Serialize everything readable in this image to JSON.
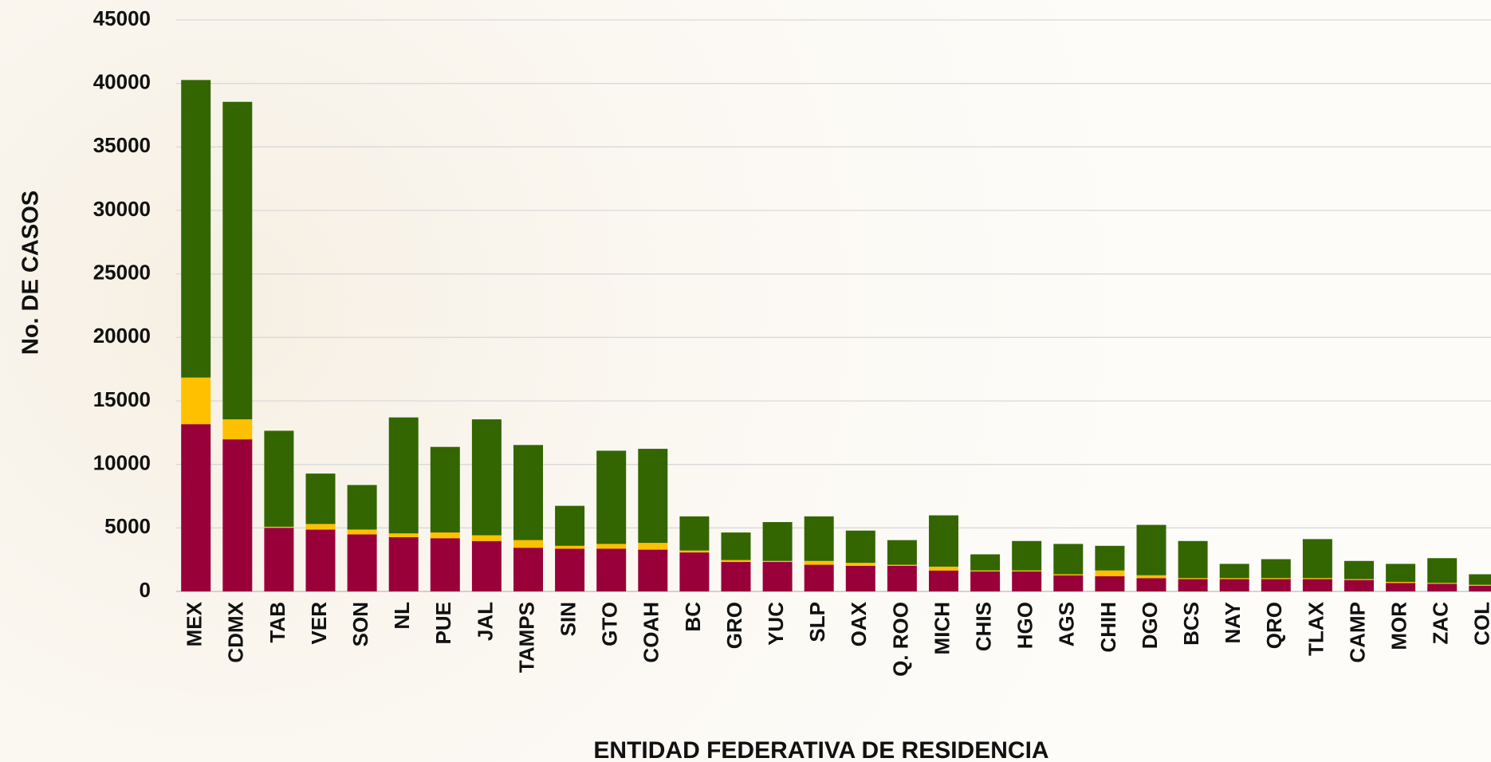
{
  "chart_data": {
    "type": "stacked_bar",
    "y_label": "No.  DE CASOS",
    "x_label": "ENTIDAD FEDERATIVA DE RESIDENCIA",
    "categories": [
      "MEX",
      "CDMX",
      "TAB",
      "VER",
      "SON",
      "NL",
      "PUE",
      "JAL",
      "TAMPS",
      "SIN",
      "GTO",
      "COAH",
      "BC",
      "GRO",
      "YUC",
      "SLP",
      "OAX",
      "Q. ROO",
      "MICH",
      "CHIS",
      "HGO",
      "AGS",
      "CHIH",
      "DGO",
      "BCS",
      "NAY",
      "QRO",
      "TLAX",
      "CAMP",
      "MOR",
      "ZAC",
      "COL"
    ],
    "series": [
      {
        "color": "#99003a",
        "values": [
          13170,
          11980,
          5010,
          4870,
          4490,
          4270,
          4190,
          3970,
          3440,
          3370,
          3370,
          3290,
          3070,
          2320,
          2320,
          2100,
          2020,
          2020,
          1650,
          1570,
          1570,
          1270,
          1200,
          1050,
          970,
          970,
          970,
          970,
          900,
          670,
          600,
          450
        ]
      },
      {
        "color": "#ffc000",
        "values": [
          3670,
          1570,
          80,
          440,
          380,
          300,
          450,
          450,
          600,
          220,
          370,
          530,
          150,
          150,
          80,
          300,
          230,
          80,
          300,
          80,
          80,
          80,
          450,
          220,
          80,
          80,
          80,
          80,
          70,
          80,
          70,
          70
        ]
      },
      {
        "color": "#336600",
        "values": [
          23430,
          25000,
          7560,
          3970,
          3510,
          9130,
          6740,
          9130,
          7490,
          3150,
          7340,
          7410,
          2690,
          2170,
          3060,
          3510,
          2540,
          1940,
          4040,
          1270,
          2320,
          2390,
          1940,
          3970,
          2920,
          1120,
          1490,
          3070,
          1430,
          1420,
          1950,
          830
        ]
      }
    ],
    "ylim": [
      0,
      45000
    ],
    "yticks": [
      0,
      5000,
      10000,
      15000,
      20000,
      25000,
      30000,
      35000,
      40000,
      45000
    ],
    "grid": true
  }
}
